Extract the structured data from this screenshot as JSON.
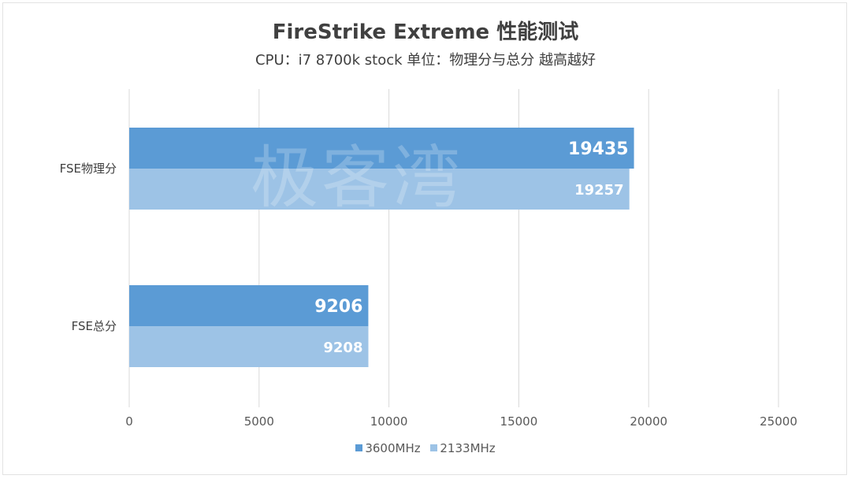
{
  "chart_data": {
    "type": "bar",
    "orientation": "horizontal",
    "title": "FireStrike Extreme 性能测试",
    "subtitle": "CPU：i7 8700k stock  单位：物理分与总分   越高越好",
    "watermark": "极客湾",
    "categories": [
      "FSE物理分",
      "FSE总分"
    ],
    "series": [
      {
        "name": "3600MHz",
        "color": "#5b9bd5",
        "values": [
          19435,
          9206
        ]
      },
      {
        "name": "2133MHz",
        "color": "#9dc3e6",
        "values": [
          19257,
          9208
        ]
      }
    ],
    "xlim": [
      0,
      25000
    ],
    "xticks": [
      "0",
      "5000",
      "10000",
      "15000",
      "20000",
      "25000"
    ],
    "grid": "vertical",
    "legend_position": "bottom"
  }
}
